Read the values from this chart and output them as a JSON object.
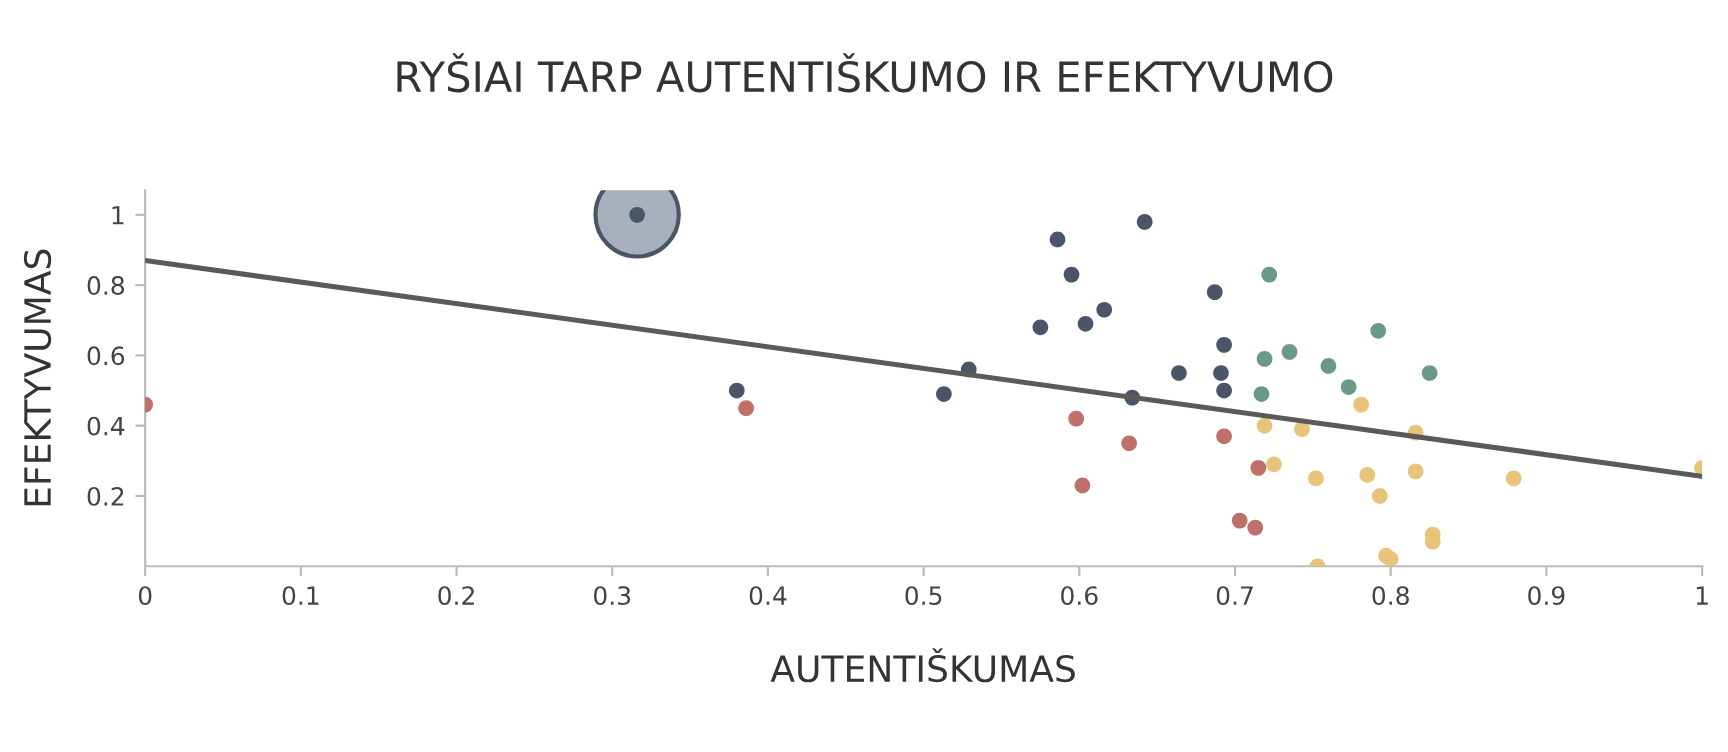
{
  "chart_data": {
    "type": "scatter",
    "title": "RYŠIAI TARP AUTENTIŠKUMO IR EFEKTYVUMO",
    "xlabel": "AUTENTIŠKUMAS",
    "ylabel": "EFEKTYVUMAS",
    "xlim": [
      0,
      1
    ],
    "ylim": [
      0,
      1.07
    ],
    "xticks": [
      0,
      0.1,
      0.2,
      0.3,
      0.4,
      0.5,
      0.6,
      0.7,
      0.8,
      0.9,
      1
    ],
    "yticks": [
      0.2,
      0.4,
      0.6,
      0.8,
      1
    ],
    "grid": false,
    "legend": false,
    "marker": "circle",
    "series": [
      {
        "type": "bubble",
        "color": "#a9b0bd",
        "x": [
          0.316
        ],
        "values": [
          1.0
        ],
        "sizes": [
          1
        ]
      },
      {
        "type": "line",
        "color": "#5a5a5a",
        "line_style": "solid",
        "marker": "none",
        "x": [
          0,
          1
        ],
        "values": [
          0.87,
          0.256
        ]
      },
      {
        "color": "#4a5668",
        "x": [
          0.316,
          0.38,
          0.513,
          0.529,
          0.575,
          0.586,
          0.595,
          0.604,
          0.616,
          0.634,
          0.642,
          0.664,
          0.687,
          0.691,
          0.693,
          0.693
        ],
        "values": [
          1.0,
          0.5,
          0.49,
          0.56,
          0.68,
          0.93,
          0.83,
          0.69,
          0.73,
          0.48,
          0.98,
          0.55,
          0.78,
          0.55,
          0.63,
          0.5
        ]
      },
      {
        "color": "#6a9a86",
        "x": [
          0.722,
          0.719,
          0.717,
          0.735,
          0.76,
          0.773,
          0.792,
          0.825
        ],
        "values": [
          0.83,
          0.59,
          0.49,
          0.61,
          0.57,
          0.51,
          0.67,
          0.55
        ]
      },
      {
        "color": "#c0706a",
        "x": [
          0,
          0.386,
          0.598,
          0.602,
          0.632,
          0.693,
          0.715,
          0.703,
          0.713
        ],
        "values": [
          0.46,
          0.45,
          0.42,
          0.23,
          0.35,
          0.37,
          0.28,
          0.13,
          0.11
        ]
      },
      {
        "color": "#e8c47a",
        "x": [
          0.781,
          0.719,
          0.743,
          0.816,
          0.725,
          0.752,
          0.785,
          0.816,
          0.879,
          0.793,
          0.827,
          0.827,
          0.797,
          0.8,
          0.753,
          1.0
        ],
        "values": [
          0.46,
          0.4,
          0.39,
          0.38,
          0.29,
          0.25,
          0.26,
          0.27,
          0.25,
          0.2,
          0.09,
          0.07,
          0.03,
          0.02,
          0.0,
          0.28
        ]
      }
    ]
  }
}
